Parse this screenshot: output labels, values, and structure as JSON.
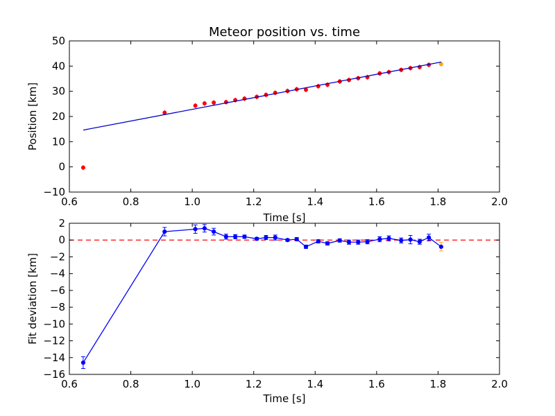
{
  "chart_data": [
    {
      "type": "scatter",
      "title": "Meteor position vs. time",
      "xlabel": "Time [s]",
      "ylabel": "Position [km]",
      "xlim": [
        0.6,
        2.0
      ],
      "ylim": [
        -10,
        50
      ],
      "xticks": [
        "0.6",
        "0.8",
        "1.0",
        "1.2",
        "1.4",
        "1.6",
        "1.8",
        "2.0"
      ],
      "yticks": [
        "−10",
        "0",
        "10",
        "20",
        "30",
        "40",
        "50"
      ],
      "xtick_values": [
        0.6,
        0.8,
        1.0,
        1.2,
        1.4,
        1.6,
        1.8,
        2.0
      ],
      "ytick_values": [
        -10,
        0,
        10,
        20,
        30,
        40,
        50
      ],
      "grid": false,
      "colors": {
        "points": "#ff0000",
        "last_point": "#ffa500",
        "fit_line": "#0000cc"
      },
      "series": [
        {
          "style": "points",
          "x": [
            0.645,
            0.91,
            1.01,
            1.04,
            1.07,
            1.11,
            1.14,
            1.17,
            1.21,
            1.24,
            1.27,
            1.31,
            1.34,
            1.37,
            1.41,
            1.44,
            1.48,
            1.51,
            1.54,
            1.57,
            1.61,
            1.64,
            1.68,
            1.71,
            1.74,
            1.77
          ],
          "y": [
            -0.3,
            21.5,
            24.3,
            25.2,
            25.5,
            25.7,
            26.5,
            27.1,
            27.8,
            28.6,
            29.4,
            30.1,
            30.8,
            30.6,
            32.0,
            32.6,
            33.9,
            34.5,
            35.2,
            35.6,
            37.1,
            37.6,
            38.5,
            39.2,
            39.6,
            40.5
          ]
        },
        {
          "style": "last_point",
          "x": [
            1.81
          ],
          "y": [
            40.8
          ]
        },
        {
          "style": "fit_line",
          "x": [
            0.645,
            1.81
          ],
          "y": [
            14.6,
            41.6
          ]
        }
      ]
    },
    {
      "type": "line",
      "xlabel": "Time [s]",
      "ylabel": "Fit deviation [km]",
      "xlim": [
        0.6,
        2.0
      ],
      "ylim": [
        -16,
        2
      ],
      "xticks": [
        "0.6",
        "0.8",
        "1.0",
        "1.2",
        "1.4",
        "1.6",
        "1.8",
        "2.0"
      ],
      "yticks": [
        "−16",
        "−14",
        "−12",
        "−10",
        "−8",
        "−6",
        "−4",
        "−2",
        "0",
        "2"
      ],
      "xtick_values": [
        0.6,
        0.8,
        1.0,
        1.2,
        1.4,
        1.6,
        1.8,
        2.0
      ],
      "ytick_values": [
        -16,
        -14,
        -12,
        -10,
        -8,
        -6,
        -4,
        -2,
        0,
        2
      ],
      "grid": false,
      "colors": {
        "line": "#0000ff",
        "zero_line": "#ff0000",
        "last_point": "#ffa500"
      },
      "reference_line_y": 0,
      "series": [
        {
          "style": "errorbar_line",
          "x": [
            0.645,
            0.91,
            1.01,
            1.04,
            1.07,
            1.11,
            1.14,
            1.17,
            1.21,
            1.24,
            1.27,
            1.31,
            1.34,
            1.37,
            1.41,
            1.44,
            1.48,
            1.51,
            1.54,
            1.57,
            1.61,
            1.64,
            1.68,
            1.71,
            1.74,
            1.77,
            1.81
          ],
          "y": [
            -14.6,
            1.0,
            1.3,
            1.4,
            1.0,
            0.4,
            0.4,
            0.4,
            0.15,
            0.3,
            0.3,
            0.0,
            0.1,
            -0.8,
            -0.15,
            -0.4,
            -0.05,
            -0.25,
            -0.25,
            -0.2,
            0.1,
            0.2,
            -0.05,
            0.05,
            -0.2,
            0.3,
            -0.8
          ],
          "err": [
            0.7,
            0.5,
            0.5,
            0.45,
            0.4,
            0.3,
            0.25,
            0.2,
            0.15,
            0.25,
            0.3,
            0.15,
            0.2,
            0.2,
            0.2,
            0.2,
            0.2,
            0.25,
            0.25,
            0.25,
            0.3,
            0.3,
            0.3,
            0.5,
            0.3,
            0.4,
            0.5
          ]
        }
      ]
    }
  ]
}
